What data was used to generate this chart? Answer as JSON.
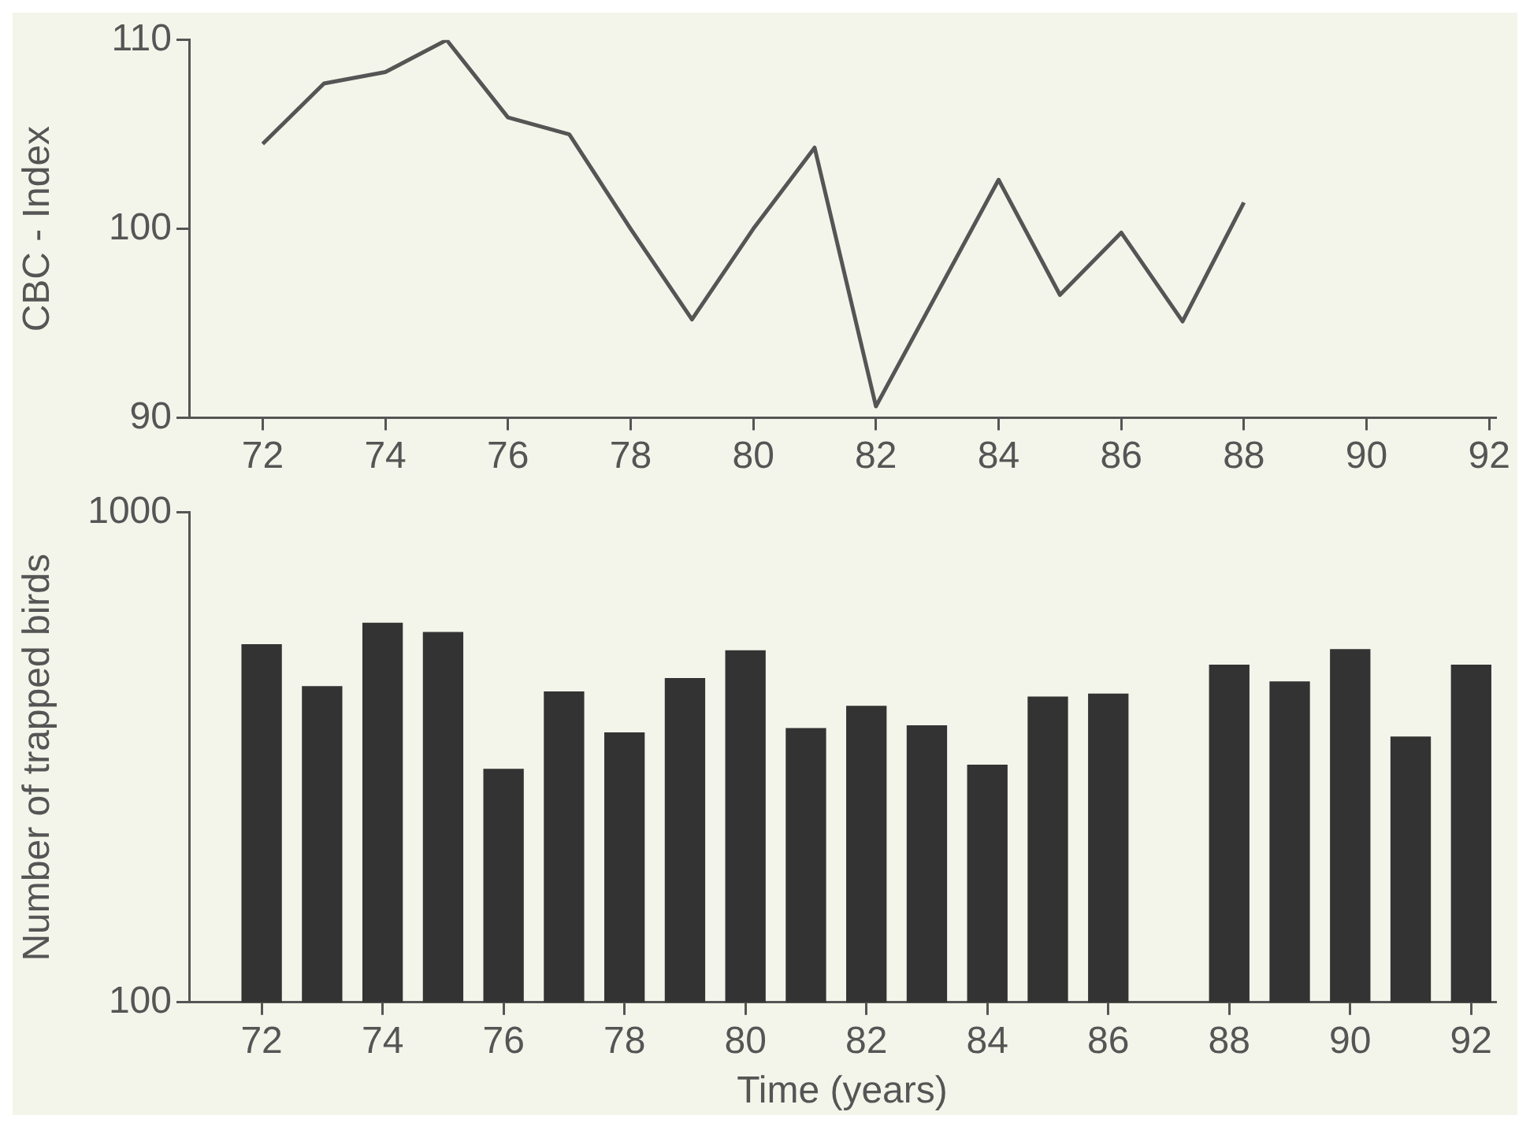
{
  "chart_data": [
    {
      "type": "line",
      "ylabel": "CBC - Index",
      "x": [
        72,
        73,
        74,
        75,
        76,
        77,
        78,
        79,
        80,
        81,
        82,
        84,
        85,
        86,
        87,
        88
      ],
      "values": [
        104.5,
        107.7,
        108.3,
        110,
        105.9,
        105,
        100,
        95.2,
        100,
        104.3,
        90.6,
        102.6,
        96.5,
        99.8,
        95.1,
        101.4
      ],
      "color": "#555555",
      "xlim": [
        70.8,
        92.1
      ],
      "xticks": [
        72,
        74,
        76,
        78,
        80,
        82,
        84,
        86,
        88,
        90,
        92
      ],
      "ylim": [
        90,
        110
      ],
      "yticks": [
        90,
        100,
        110
      ],
      "grid": false,
      "legend": false,
      "marker": "none",
      "line_style": "solid"
    },
    {
      "type": "bar",
      "ylabel": "Number of trapped birds",
      "xlabel": "Time (years)",
      "x": [
        72,
        73,
        74,
        75,
        76,
        77,
        78,
        79,
        80,
        81,
        82,
        83,
        84,
        85,
        86,
        87,
        88,
        89,
        90,
        91,
        92
      ],
      "values": [
        537,
        441,
        594,
        569,
        299,
        430,
        355,
        458,
        522,
        362,
        402,
        367,
        305,
        420,
        426,
        null,
        488,
        451,
        525,
        348,
        488
      ],
      "color": "#333333",
      "xlim": [
        70.8,
        92.4
      ],
      "xticks": [
        72,
        74,
        76,
        78,
        80,
        82,
        84,
        86,
        88,
        90,
        92
      ],
      "ylim": [
        100,
        1000
      ],
      "yticks": [
        100,
        1000
      ],
      "log": true,
      "grid": false,
      "legend": false
    }
  ]
}
